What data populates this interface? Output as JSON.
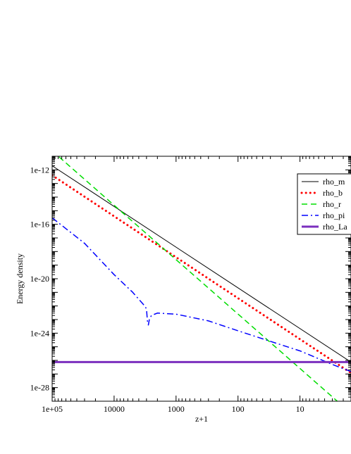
{
  "chart_data": {
    "type": "line",
    "xlabel": "z+1",
    "ylabel": "Energy density",
    "x_scale": "log",
    "y_scale": "log",
    "x_reversed": true,
    "xlim": [
      100000,
      1.5
    ],
    "ylim": [
      1e-29,
      1e-11
    ],
    "grid": false,
    "legend_position": "top-right",
    "x_ticks": [
      {
        "value": 100000,
        "label": "1e+05"
      },
      {
        "value": 10000,
        "label": "10000"
      },
      {
        "value": 1000,
        "label": "1000"
      },
      {
        "value": 100,
        "label": "100"
      },
      {
        "value": 10,
        "label": "10"
      }
    ],
    "y_ticks": [
      {
        "value": 1e-12,
        "label": "1e-12"
      },
      {
        "value": 1e-16,
        "label": "1e-16"
      },
      {
        "value": 1e-20,
        "label": "1e-20"
      },
      {
        "value": 1e-24,
        "label": "1e-24"
      },
      {
        "value": 1e-28,
        "label": "1e-28"
      }
    ],
    "series": [
      {
        "name": "rho_m",
        "color": "#000000",
        "style": "solid",
        "width": 1,
        "x": [
          100000,
          1.5
        ],
        "y": [
          2e-12,
          7.5e-27
        ]
      },
      {
        "name": "rho_b",
        "color": "#ff0000",
        "style": "dotted",
        "width": 3,
        "x": [
          100000,
          1.5
        ],
        "y": [
          4e-13,
          1.2e-27
        ]
      },
      {
        "name": "rho_r",
        "color": "#00dd00",
        "style": "dashed",
        "width": 1.5,
        "x": [
          100000,
          1.5
        ],
        "y": [
          2.5e-11,
          1.3e-30
        ]
      },
      {
        "name": "rho_pi",
        "color": "#0000ff",
        "style": "dash-dot",
        "width": 1.5,
        "x": [
          100000,
          30000,
          10000,
          5000,
          3200,
          3000,
          2900,
          2800,
          2700,
          2500,
          2000,
          1000,
          300,
          100,
          30,
          10,
          3,
          1.5
        ],
        "y": [
          3e-16,
          4e-18,
          2e-20,
          1e-21,
          1e-22,
          6e-23,
          8e-24,
          4e-24,
          1e-23,
          2e-23,
          3e-23,
          2.5e-23,
          8e-24,
          1.5e-24,
          2.5e-25,
          5e-26,
          5e-27,
          1.5e-27
        ]
      },
      {
        "name": "rho_Lambda",
        "legend_label": "rho_La",
        "color": "#7b2fbe",
        "style": "solid",
        "width": 3,
        "x": [
          100000,
          1.5
        ],
        "y": [
          7.5e-27,
          7.5e-27
        ]
      }
    ]
  }
}
